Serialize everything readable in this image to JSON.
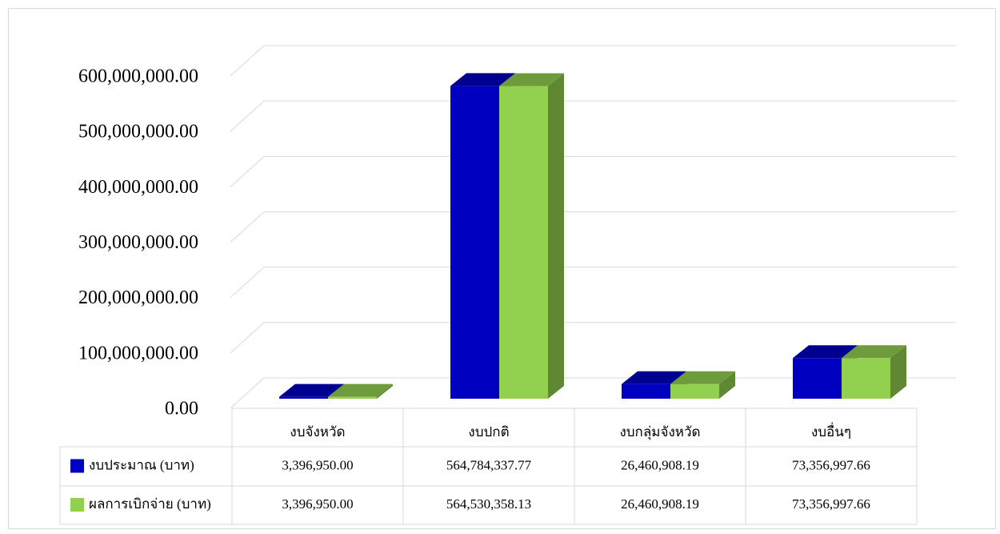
{
  "chart_data": {
    "type": "bar3d",
    "categories": [
      "งบจังหวัด",
      "งบปกติ",
      "งบกลุ่มจังหวัด",
      "งบอื่นๆ"
    ],
    "series": [
      {
        "name": "งบประมาณ (บาท)",
        "color": "#0000c0",
        "values": [
          3396950.0,
          564784337.77,
          26460908.19,
          73356997.66
        ],
        "value_labels": [
          "3,396,950.00",
          "564,784,337.77",
          "26,460,908.19",
          "73,356,997.66"
        ]
      },
      {
        "name": "ผลการเบิกจ่าย (บาท)",
        "color": "#92d050",
        "values": [
          3396950.0,
          564530358.13,
          26460908.19,
          73356997.66
        ],
        "value_labels": [
          "3,396,950.00",
          "564,530,358.13",
          "26,460,908.19",
          "73,356,997.66"
        ]
      }
    ],
    "ylim": [
      0,
      600000000
    ],
    "yticks": [
      {
        "value": 0,
        "label": "0.00"
      },
      {
        "value": 100000000,
        "label": "100,000,000.00"
      },
      {
        "value": 200000000,
        "label": "200,000,000.00"
      },
      {
        "value": 300000000,
        "label": "300,000,000.00"
      },
      {
        "value": 400000000,
        "label": "400,000,000.00"
      },
      {
        "value": 500000000,
        "label": "500,000,000.00"
      },
      {
        "value": 600000000,
        "label": "600,000,000.00"
      }
    ],
    "grid": true
  }
}
